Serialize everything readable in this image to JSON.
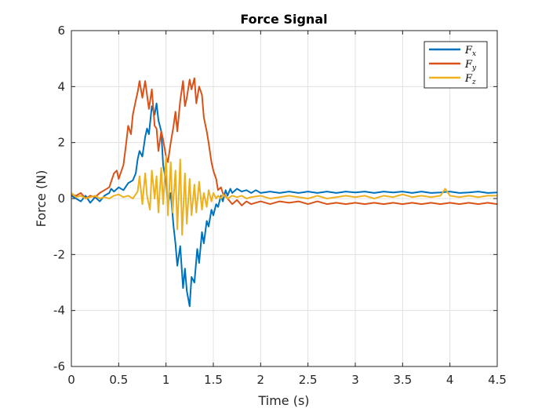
{
  "chart_data": {
    "type": "line",
    "title": "Force Signal",
    "xlabel": "Time (s)",
    "ylabel": "Force (N)",
    "xlim": [
      0,
      4.5
    ],
    "ylim": [
      -6,
      6
    ],
    "xticks": [
      0,
      0.5,
      1,
      1.5,
      2,
      2.5,
      3,
      3.5,
      4,
      4.5
    ],
    "xtick_labels": [
      "0",
      "0.5",
      "1",
      "1.5",
      "2",
      "2.5",
      "3",
      "3.5",
      "4",
      "4.5"
    ],
    "yticks": [
      -6,
      -4,
      -2,
      0,
      2,
      4,
      6
    ],
    "ytick_labels": [
      "-6",
      "-4",
      "-2",
      "0",
      "2",
      "4",
      "6"
    ],
    "grid": true,
    "box": true,
    "legend_position": "top-right",
    "series": [
      {
        "name": "F",
        "subscript": "x",
        "color": "#0072BD",
        "x": [
          0,
          0.05,
          0.1,
          0.15,
          0.2,
          0.25,
          0.3,
          0.35,
          0.4,
          0.42,
          0.45,
          0.5,
          0.55,
          0.6,
          0.65,
          0.68,
          0.7,
          0.72,
          0.75,
          0.78,
          0.8,
          0.82,
          0.85,
          0.88,
          0.9,
          0.92,
          0.95,
          0.97,
          1.0,
          1.02,
          1.05,
          1.08,
          1.1,
          1.12,
          1.15,
          1.18,
          1.2,
          1.22,
          1.25,
          1.27,
          1.3,
          1.33,
          1.35,
          1.38,
          1.4,
          1.43,
          1.45,
          1.48,
          1.5,
          1.53,
          1.55,
          1.58,
          1.6,
          1.63,
          1.65,
          1.68,
          1.7,
          1.75,
          1.8,
          1.85,
          1.9,
          1.95,
          2.0,
          2.1,
          2.2,
          2.3,
          2.4,
          2.5,
          2.6,
          2.7,
          2.8,
          2.9,
          3.0,
          3.1,
          3.2,
          3.3,
          3.4,
          3.5,
          3.6,
          3.7,
          3.8,
          3.9,
          4.0,
          4.1,
          4.2,
          4.3,
          4.4,
          4.5
        ],
        "y": [
          0.1,
          0.0,
          -0.1,
          0.1,
          -0.15,
          0.05,
          -0.1,
          0.1,
          0.2,
          0.35,
          0.25,
          0.4,
          0.3,
          0.55,
          0.65,
          0.9,
          1.4,
          1.7,
          1.5,
          2.2,
          2.5,
          2.3,
          3.3,
          3.0,
          3.4,
          2.8,
          2.4,
          1.2,
          0.6,
          -0.2,
          0.2,
          -1.0,
          -1.6,
          -2.4,
          -1.7,
          -3.2,
          -2.5,
          -3.3,
          -3.85,
          -2.8,
          -3.0,
          -1.8,
          -2.3,
          -1.2,
          -1.6,
          -0.8,
          -1.0,
          -0.4,
          -0.6,
          -0.2,
          -0.3,
          0.1,
          -0.1,
          0.3,
          0.1,
          0.35,
          0.2,
          0.35,
          0.25,
          0.3,
          0.2,
          0.3,
          0.2,
          0.25,
          0.2,
          0.25,
          0.2,
          0.25,
          0.2,
          0.25,
          0.2,
          0.25,
          0.22,
          0.25,
          0.2,
          0.25,
          0.22,
          0.25,
          0.2,
          0.25,
          0.2,
          0.22,
          0.25,
          0.2,
          0.22,
          0.25,
          0.2,
          0.22
        ]
      },
      {
        "name": "F",
        "subscript": "y",
        "color": "#D95319",
        "x": [
          0,
          0.05,
          0.1,
          0.15,
          0.2,
          0.25,
          0.3,
          0.35,
          0.4,
          0.45,
          0.48,
          0.5,
          0.53,
          0.55,
          0.58,
          0.6,
          0.63,
          0.65,
          0.68,
          0.7,
          0.72,
          0.75,
          0.78,
          0.8,
          0.82,
          0.85,
          0.88,
          0.9,
          0.92,
          0.95,
          0.97,
          1.0,
          1.02,
          1.05,
          1.08,
          1.1,
          1.12,
          1.15,
          1.18,
          1.2,
          1.22,
          1.25,
          1.27,
          1.3,
          1.32,
          1.35,
          1.38,
          1.4,
          1.43,
          1.45,
          1.48,
          1.5,
          1.53,
          1.55,
          1.58,
          1.6,
          1.65,
          1.7,
          1.75,
          1.8,
          1.85,
          1.9,
          2.0,
          2.1,
          2.2,
          2.3,
          2.4,
          2.5,
          2.6,
          2.7,
          2.8,
          2.9,
          3.0,
          3.1,
          3.2,
          3.3,
          3.4,
          3.5,
          3.6,
          3.7,
          3.8,
          3.9,
          4.0,
          4.1,
          4.2,
          4.3,
          4.4,
          4.5
        ],
        "y": [
          0.15,
          0.1,
          0.2,
          0.0,
          0.1,
          0.05,
          0.2,
          0.3,
          0.4,
          0.9,
          1.0,
          0.7,
          1.0,
          1.2,
          2.0,
          2.6,
          2.3,
          3.0,
          3.5,
          3.8,
          4.2,
          3.6,
          4.2,
          3.7,
          3.2,
          3.9,
          2.6,
          2.5,
          1.7,
          2.4,
          2.1,
          1.5,
          1.3,
          2.0,
          2.6,
          3.1,
          2.4,
          3.5,
          4.2,
          3.3,
          3.6,
          4.25,
          3.9,
          4.3,
          3.4,
          4.0,
          3.7,
          2.9,
          2.4,
          2.0,
          1.3,
          1.0,
          0.7,
          0.3,
          0.4,
          0.2,
          0.0,
          -0.2,
          -0.05,
          -0.25,
          -0.1,
          -0.2,
          -0.1,
          -0.2,
          -0.1,
          -0.15,
          -0.1,
          -0.2,
          -0.1,
          -0.2,
          -0.15,
          -0.2,
          -0.15,
          -0.2,
          -0.15,
          -0.2,
          -0.15,
          -0.2,
          -0.15,
          -0.2,
          -0.15,
          -0.2,
          -0.15,
          -0.2,
          -0.15,
          -0.2,
          -0.15,
          -0.2
        ]
      },
      {
        "name": "F",
        "subscript": "z",
        "color": "#EDB120",
        "x": [
          0,
          0.05,
          0.1,
          0.15,
          0.2,
          0.25,
          0.3,
          0.35,
          0.4,
          0.45,
          0.5,
          0.55,
          0.6,
          0.65,
          0.7,
          0.72,
          0.75,
          0.78,
          0.8,
          0.83,
          0.85,
          0.88,
          0.9,
          0.92,
          0.95,
          0.97,
          1.0,
          1.02,
          1.05,
          1.07,
          1.1,
          1.12,
          1.15,
          1.17,
          1.2,
          1.22,
          1.25,
          1.27,
          1.3,
          1.32,
          1.35,
          1.38,
          1.4,
          1.43,
          1.45,
          1.48,
          1.5,
          1.53,
          1.55,
          1.58,
          1.6,
          1.65,
          1.7,
          1.75,
          1.8,
          1.85,
          1.9,
          2.0,
          2.1,
          2.2,
          2.3,
          2.4,
          2.5,
          2.6,
          2.7,
          2.8,
          2.9,
          3.0,
          3.1,
          3.2,
          3.3,
          3.4,
          3.5,
          3.6,
          3.7,
          3.8,
          3.9,
          3.95,
          4.0,
          4.1,
          4.2,
          4.3,
          4.4,
          4.5
        ],
        "y": [
          0.2,
          0.05,
          0.1,
          0.0,
          0.05,
          0.1,
          0.0,
          0.05,
          0.0,
          0.1,
          0.15,
          0.05,
          0.1,
          0.0,
          0.25,
          0.8,
          -0.2,
          0.9,
          0.1,
          -0.4,
          1.0,
          0.0,
          0.8,
          -0.5,
          1.1,
          -0.2,
          1.5,
          -0.6,
          1.3,
          -0.5,
          1.0,
          -1.1,
          1.4,
          -1.3,
          0.9,
          -0.9,
          0.7,
          -0.6,
          0.5,
          -0.5,
          0.6,
          -0.4,
          0.2,
          -0.3,
          0.3,
          -0.1,
          0.2,
          0.0,
          0.1,
          0.0,
          0.15,
          0.0,
          0.1,
          0.05,
          0.1,
          0.0,
          0.05,
          0.1,
          0.0,
          0.05,
          0.1,
          0.05,
          0.0,
          0.1,
          0.0,
          0.05,
          0.1,
          0.05,
          0.1,
          0.0,
          0.1,
          0.05,
          0.15,
          0.05,
          0.1,
          0.05,
          0.1,
          0.35,
          0.1,
          0.05,
          0.1,
          0.05,
          0.1,
          0.1
        ]
      }
    ]
  }
}
